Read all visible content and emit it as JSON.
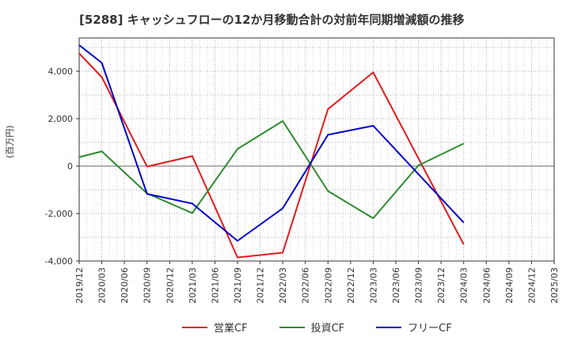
{
  "chart_data": {
    "type": "line",
    "title": "[5288]  キャッシュフローの12か月移動合計の対前年同期増減額の推移",
    "ylabel": "(百万円)",
    "xlabel": "",
    "ylim": [
      -4000,
      5400
    ],
    "yticks": [
      4000,
      2000,
      0,
      -2000,
      -4000
    ],
    "ytick_labels": [
      "4,000",
      "2,000",
      "0",
      "-2,000",
      "-4,000"
    ],
    "x": [
      "2019/12",
      "2020/03",
      "2020/06",
      "2020/09",
      "2020/12",
      "2021/03",
      "2021/06",
      "2021/09",
      "2021/12",
      "2022/03",
      "2022/06",
      "2022/09",
      "2022/12",
      "2023/03",
      "2023/06",
      "2023/09",
      "2023/12",
      "2024/03",
      "2024/06",
      "2024/09",
      "2024/12",
      "2025/03"
    ],
    "grid": true,
    "legend_position": "bottom",
    "series": [
      {
        "name": "営業CF",
        "color": "#e31a1c",
        "values": [
          4750,
          3750,
          null,
          -20,
          null,
          420,
          null,
          -3850,
          null,
          -3650,
          null,
          2400,
          null,
          3950,
          null,
          null,
          null,
          -3300,
          null,
          null,
          null,
          null
        ]
      },
      {
        "name": "投資CF",
        "color": "#2e8b2e",
        "values": [
          380,
          620,
          null,
          -1150,
          null,
          -1980,
          null,
          720,
          null,
          1900,
          null,
          -1050,
          null,
          -2200,
          null,
          30,
          null,
          950,
          null,
          null,
          null,
          null
        ]
      },
      {
        "name": "フリーCF",
        "color": "#0000cc",
        "values": [
          5100,
          4350,
          null,
          -1170,
          null,
          -1580,
          null,
          -3150,
          null,
          -1780,
          null,
          1320,
          null,
          1700,
          null,
          null,
          null,
          -2380,
          null,
          null,
          null,
          null
        ]
      }
    ]
  }
}
